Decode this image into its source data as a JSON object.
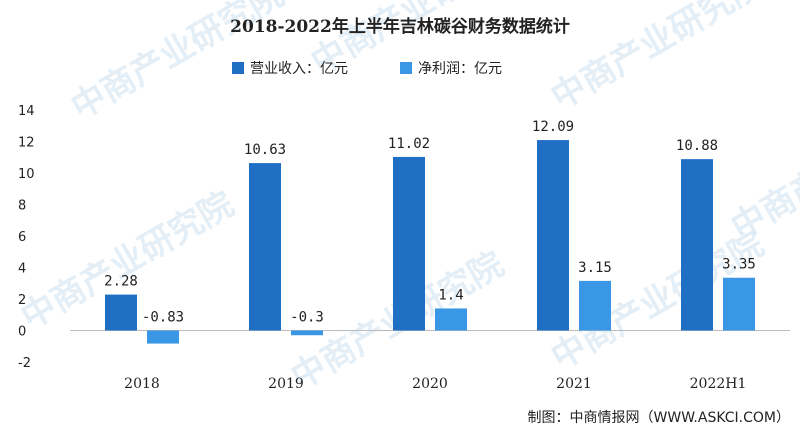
{
  "chart_data": {
    "type": "bar",
    "title": "2018-2022年上半年吉林碳谷财务数据统计",
    "categories": [
      "2018",
      "2019",
      "2020",
      "2021",
      "2022H1"
    ],
    "series": [
      {
        "name": "营业收入：亿元",
        "color": "#1f6fc5",
        "values": [
          2.28,
          10.63,
          11.02,
          12.09,
          10.88
        ],
        "labels": [
          "2.28",
          "10.63",
          "11.02",
          "12.09",
          "10.88"
        ]
      },
      {
        "name": "净利润：亿元",
        "color": "#3a97e6",
        "values": [
          -0.83,
          -0.3,
          1.4,
          3.15,
          3.35
        ],
        "labels": [
          "-0.83",
          "-0.3",
          "1.4",
          "3.15",
          "3.35"
        ]
      }
    ],
    "ylim": [
      -2,
      14
    ],
    "yticks": [
      "-2",
      "0",
      "2",
      "4",
      "6",
      "8",
      "10",
      "12",
      "14"
    ],
    "ytick_values": [
      -2,
      0,
      2,
      4,
      6,
      8,
      10,
      12,
      14
    ],
    "legend_position": "top-center",
    "grid": false,
    "source": "制图：中商情报网（WWW.ASKCI.COM）"
  },
  "watermark": "中商产业研究院"
}
